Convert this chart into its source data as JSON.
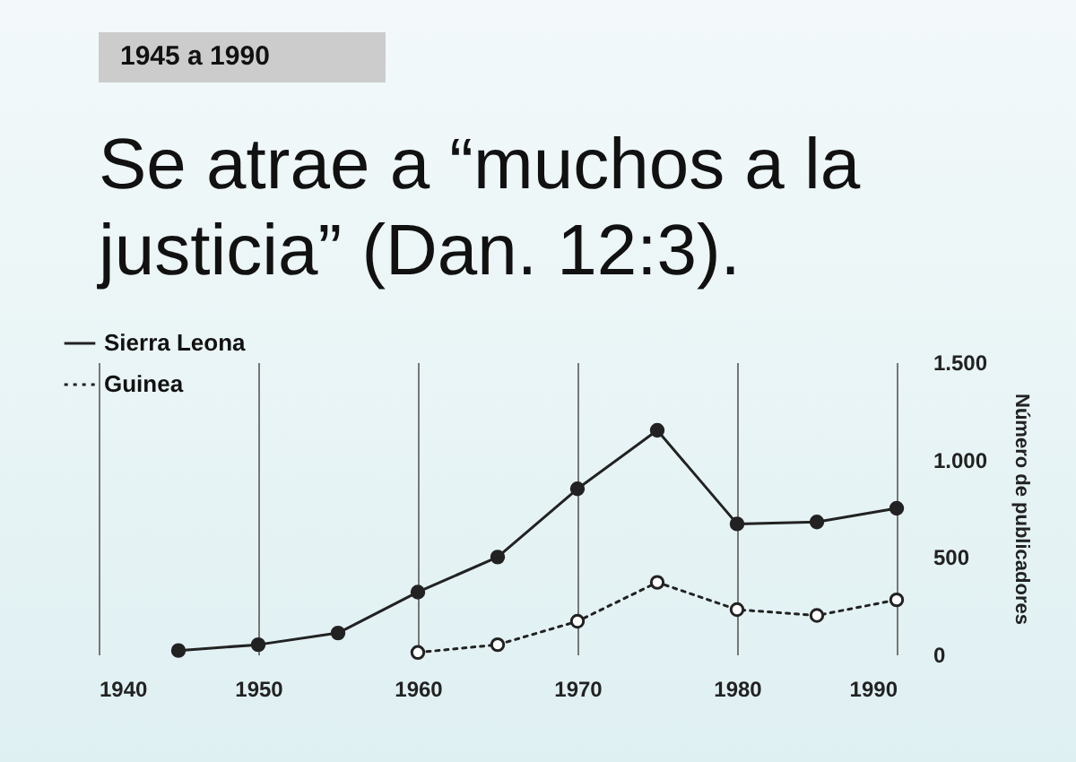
{
  "chart_data": {
    "type": "line",
    "title": "Se atrae a “muchos a la justicia” (Dan. 12:3).",
    "subtitle": "1945 a 1990",
    "ylabel": "Número de publicadores",
    "series": [
      {
        "name": "Sierra Leona",
        "color": "#222222",
        "line_style": "solid",
        "x": [
          1945,
          1950,
          1955,
          1960,
          1965,
          1970,
          1975,
          1980,
          1985,
          1990
        ],
        "values": [
          20,
          50,
          110,
          320,
          500,
          850,
          1150,
          670,
          680,
          750
        ]
      },
      {
        "name": "Guinea",
        "color": "#222222",
        "line_style": "dotted",
        "x": [
          1960,
          1965,
          1970,
          1975,
          1980,
          1985,
          1990
        ],
        "values": [
          10,
          50,
          170,
          370,
          230,
          200,
          280
        ]
      }
    ],
    "xlim": [
      1940,
      1990
    ],
    "xticks": [
      1940,
      1950,
      1960,
      1970,
      1980,
      1990
    ],
    "ylim": [
      0,
      1500
    ],
    "yticks": [
      0,
      {
        "value": 500,
        "label": "500"
      },
      {
        "value": 1000,
        "label": "1.000"
      },
      {
        "value": 1500,
        "label": "1.500"
      }
    ],
    "grid": "x",
    "legend": "top left",
    "marker": "circle"
  }
}
